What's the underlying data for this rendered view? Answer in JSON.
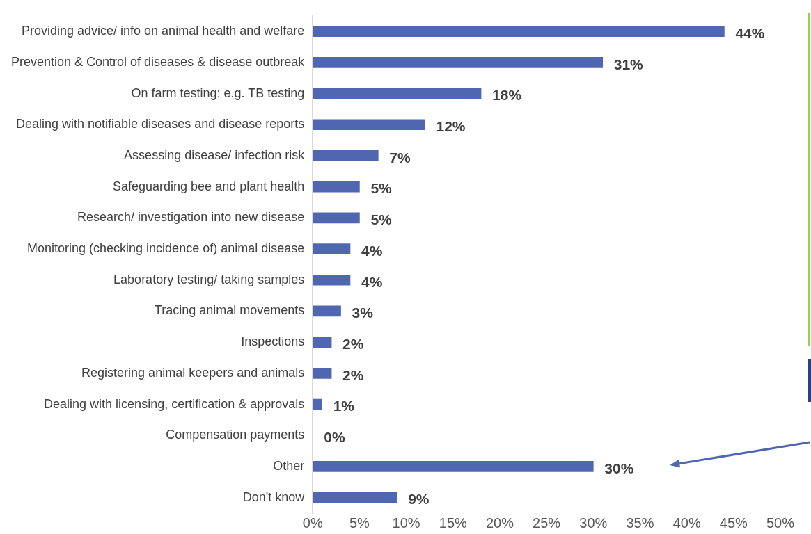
{
  "chart_data": {
    "type": "bar",
    "orientation": "horizontal",
    "categories": [
      "Providing advice/ info on animal health and welfare",
      "Prevention & Control of diseases & disease outbreak",
      "On farm testing: e.g. TB testing",
      "Dealing with notifiable diseases and disease reports",
      "Assessing disease/ infection risk",
      "Safeguarding bee and plant health",
      "Research/ investigation into new disease",
      "Monitoring (checking incidence of) animal disease",
      "Laboratory testing/ taking samples",
      "Tracing animal movements",
      "Inspections",
      "Registering animal keepers and animals",
      "Dealing with licensing, certification & approvals",
      "Compensation payments",
      "Other",
      "Don't know"
    ],
    "values": [
      44,
      31,
      18,
      12,
      7,
      5,
      5,
      4,
      4,
      3,
      2,
      2,
      1,
      0,
      30,
      9
    ],
    "value_labels": [
      "44%",
      "31%",
      "18%",
      "12%",
      "7%",
      "5%",
      "5%",
      "4%",
      "4%",
      "3%",
      "2%",
      "2%",
      "1%",
      "0%",
      "30%",
      "9%"
    ],
    "color": "#4f67b0",
    "xlim": [
      0,
      50
    ],
    "xticks": [
      {
        "value": 0,
        "label": "0%"
      },
      {
        "value": 5,
        "label": "5%"
      },
      {
        "value": 10,
        "label": "10%"
      },
      {
        "value": 15,
        "label": "15%"
      },
      {
        "value": 20,
        "label": "20%"
      },
      {
        "value": 25,
        "label": "25%"
      },
      {
        "value": 30,
        "label": "30%"
      },
      {
        "value": 35,
        "label": "35%"
      },
      {
        "value": 40,
        "label": "40%"
      },
      {
        "value": 45,
        "label": "45%"
      },
      {
        "value": 50,
        "label": "50%"
      }
    ],
    "grid": false,
    "legend": false
  }
}
